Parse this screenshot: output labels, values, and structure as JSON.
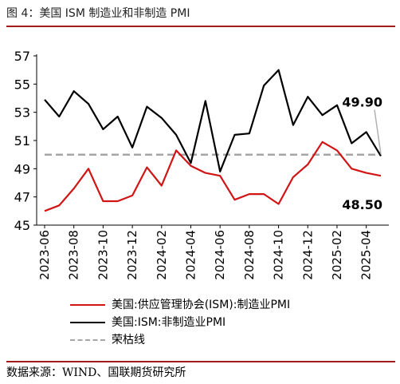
{
  "figure": {
    "title": "图 4：美国 ISM 制造业和非制造 PMI",
    "source": "数据来源：WIND、国联期货研究所"
  },
  "colors": {
    "manufacturing": "#d11414",
    "non_manufacturing": "#000000",
    "boom_bust": "#a6a6a6",
    "rule": "#a11b1b",
    "annotation_line": "#b0b0b0"
  },
  "chart_data": {
    "type": "line",
    "title": "",
    "xlabel": "",
    "ylabel": "",
    "ylim": [
      45,
      57
    ],
    "y_ticks": [
      "45",
      "47",
      "49",
      "51",
      "53",
      "55",
      "57"
    ],
    "x": [
      "2023-06",
      "2023-07",
      "2023-08",
      "2023-09",
      "2023-10",
      "2023-11",
      "2023-12",
      "2024-01",
      "2024-02",
      "2024-03",
      "2024-04",
      "2024-05",
      "2024-06",
      "2024-07",
      "2024-08",
      "2024-09",
      "2024-10",
      "2024-11",
      "2024-12",
      "2025-01",
      "2025-02",
      "2025-03",
      "2025-04",
      "2025-05"
    ],
    "x_tick_labels": [
      "2023-06",
      "2023-08",
      "2023-10",
      "2023-12",
      "2024-02",
      "2024-04",
      "2024-06",
      "2024-08",
      "2024-10",
      "2024-12",
      "2025-02",
      "2025-04"
    ],
    "grid": false,
    "legend_position": "bottom",
    "series": [
      {
        "name": "美国:供应管理协会(ISM):制造业PMI",
        "color_key": "manufacturing",
        "style": "solid",
        "values": [
          46.0,
          46.4,
          47.6,
          49.0,
          46.7,
          46.7,
          47.1,
          49.1,
          47.8,
          50.3,
          49.2,
          48.7,
          48.5,
          46.8,
          47.2,
          47.2,
          46.5,
          48.4,
          49.3,
          50.9,
          50.3,
          49.0,
          48.7,
          48.5
        ]
      },
      {
        "name": "美国:ISM:非制造业PMI",
        "color_key": "non_manufacturing",
        "style": "solid",
        "values": [
          53.9,
          52.7,
          54.5,
          53.6,
          51.8,
          52.7,
          50.5,
          53.4,
          52.6,
          51.4,
          49.4,
          53.8,
          48.8,
          51.4,
          51.5,
          54.9,
          56.0,
          52.1,
          54.1,
          52.8,
          53.5,
          50.8,
          51.6,
          49.9
        ]
      },
      {
        "name": "荣枯线",
        "color_key": "boom_bust",
        "style": "dashed",
        "values": [
          50,
          50,
          50,
          50,
          50,
          50,
          50,
          50,
          50,
          50,
          50,
          50,
          50,
          50,
          50,
          50,
          50,
          50,
          50,
          50,
          50,
          50,
          50,
          50
        ]
      }
    ],
    "annotations": [
      {
        "text": "49.90",
        "series_index": 1,
        "x": "2025-05",
        "y": 49.9,
        "anchor": "above",
        "leader_line": true
      },
      {
        "text": "48.50",
        "series_index": 0,
        "x": "2025-05",
        "y": 48.5,
        "anchor": "below",
        "leader_line": false
      }
    ]
  }
}
